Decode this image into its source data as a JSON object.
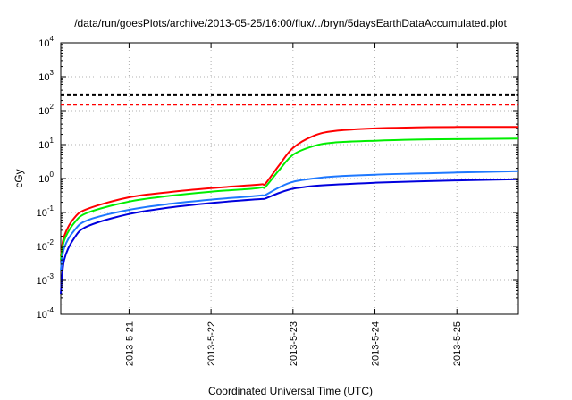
{
  "chart_data": {
    "type": "line",
    "title": "/data/run/goesPlots/archive/2013-05-25/16:00/flux/../bryn/5daysEarthDataAccumulated.plot",
    "xlabel": "Coordinated Universal Time (UTC)",
    "ylabel": "cGy",
    "yscale": "log",
    "ylim": [
      0.0001,
      10000
    ],
    "xlim": [
      "2013-05-20 04:00",
      "2013-05-25 18:00"
    ],
    "grid": true,
    "legend": "none",
    "x_ticks": [
      "2013-5-21",
      "2013-5-22",
      "2013-5-23",
      "2013-5-24",
      "2013-5-25"
    ],
    "y_ticks": [
      {
        "base": "10",
        "exp": "-4",
        "value": 0.0001
      },
      {
        "base": "10",
        "exp": "-3",
        "value": 0.001
      },
      {
        "base": "10",
        "exp": "-2",
        "value": 0.01
      },
      {
        "base": "10",
        "exp": "-1",
        "value": 0.1
      },
      {
        "base": "10",
        "exp": "0",
        "value": 1
      },
      {
        "base": "10",
        "exp": "1",
        "value": 10
      },
      {
        "base": "10",
        "exp": "2",
        "value": 100
      },
      {
        "base": "10",
        "exp": "3",
        "value": 1000
      },
      {
        "base": "10",
        "exp": "4",
        "value": 10000
      }
    ],
    "reference_lines": [
      {
        "value": 300,
        "color": "#000000",
        "style": "dashed"
      },
      {
        "value": 150,
        "color": "#ff0000",
        "style": "dashed"
      }
    ],
    "series": [
      {
        "color": "#ff0000",
        "x": [
          "2013-05-20 04:00",
          "2013-05-20 05:00",
          "2013-05-20 08:00",
          "2013-05-20 12:00",
          "2013-05-21 00:00",
          "2013-05-21 12:00",
          "2013-05-22 00:00",
          "2013-05-22 12:00",
          "2013-05-22 15:00",
          "2013-05-22 16:00",
          "2013-05-22 20:00",
          "2013-05-23 00:00",
          "2013-05-23 06:00",
          "2013-05-23 12:00",
          "2013-05-24 00:00",
          "2013-05-24 12:00",
          "2013-05-25 00:00",
          "2013-05-25 18:00"
        ],
        "values": [
          0.005,
          0.02,
          0.07,
          0.13,
          0.28,
          0.4,
          0.52,
          0.64,
          0.68,
          0.72,
          2.5,
          8,
          18,
          25,
          30,
          32,
          33,
          33
        ]
      },
      {
        "color": "#00ee00",
        "x": [
          "2013-05-20 04:00",
          "2013-05-20 05:00",
          "2013-05-20 08:00",
          "2013-05-20 12:00",
          "2013-05-21 00:00",
          "2013-05-21 12:00",
          "2013-05-22 00:00",
          "2013-05-22 12:00",
          "2013-05-22 15:00",
          "2013-05-22 16:00",
          "2013-05-22 20:00",
          "2013-05-23 00:00",
          "2013-05-23 06:00",
          "2013-05-23 12:00",
          "2013-05-24 00:00",
          "2013-05-24 12:00",
          "2013-05-25 00:00",
          "2013-05-25 18:00"
        ],
        "values": [
          0.004,
          0.015,
          0.05,
          0.1,
          0.21,
          0.31,
          0.41,
          0.5,
          0.55,
          0.58,
          1.8,
          5,
          9,
          11.5,
          13,
          14,
          14.5,
          15
        ]
      },
      {
        "color": "#1e78ff",
        "x": [
          "2013-05-20 04:00",
          "2013-05-20 05:00",
          "2013-05-20 08:00",
          "2013-05-20 12:00",
          "2013-05-21 00:00",
          "2013-05-21 12:00",
          "2013-05-22 00:00",
          "2013-05-22 12:00",
          "2013-05-22 15:00",
          "2013-05-22 16:00",
          "2013-05-22 20:00",
          "2013-05-23 00:00",
          "2013-05-23 06:00",
          "2013-05-23 12:00",
          "2013-05-24 00:00",
          "2013-05-24 12:00",
          "2013-05-25 00:00",
          "2013-05-25 18:00"
        ],
        "values": [
          0.002,
          0.009,
          0.03,
          0.06,
          0.12,
          0.18,
          0.24,
          0.3,
          0.32,
          0.33,
          0.55,
          0.8,
          1.0,
          1.15,
          1.3,
          1.4,
          1.5,
          1.65
        ]
      },
      {
        "color": "#0000dd",
        "x": [
          "2013-05-20 04:00",
          "2013-05-20 05:00",
          "2013-05-20 08:00",
          "2013-05-20 12:00",
          "2013-05-21 00:00",
          "2013-05-21 12:00",
          "2013-05-22 00:00",
          "2013-05-22 12:00",
          "2013-05-22 15:00",
          "2013-05-22 16:00",
          "2013-05-22 20:00",
          "2013-05-23 00:00",
          "2013-05-23 06:00",
          "2013-05-23 12:00",
          "2013-05-24 00:00",
          "2013-05-24 12:00",
          "2013-05-25 00:00",
          "2013-05-25 18:00"
        ],
        "values": [
          0.0004,
          0.004,
          0.018,
          0.04,
          0.09,
          0.14,
          0.19,
          0.24,
          0.25,
          0.26,
          0.38,
          0.5,
          0.6,
          0.66,
          0.75,
          0.82,
          0.88,
          0.95
        ]
      }
    ]
  }
}
